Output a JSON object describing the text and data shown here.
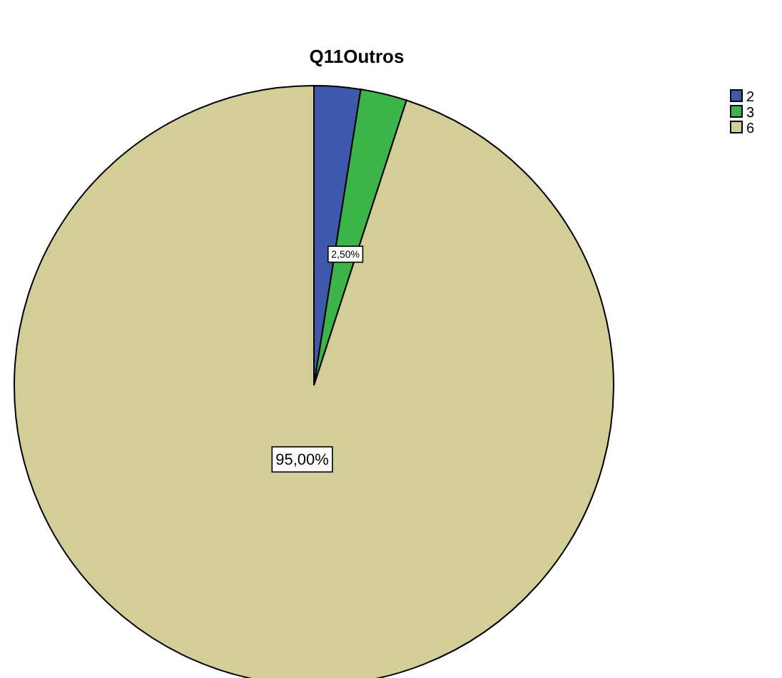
{
  "chart_data": {
    "type": "pie",
    "title": "Q11Outros",
    "categories": [
      "2",
      "3",
      "6"
    ],
    "values": [
      2.5,
      2.5,
      95
    ],
    "colors": [
      "#3e58ac",
      "#3bb44a",
      "#d3ce98"
    ],
    "value_labels": [
      null,
      "2,50%",
      "95,00%"
    ],
    "legend": "top right"
  }
}
